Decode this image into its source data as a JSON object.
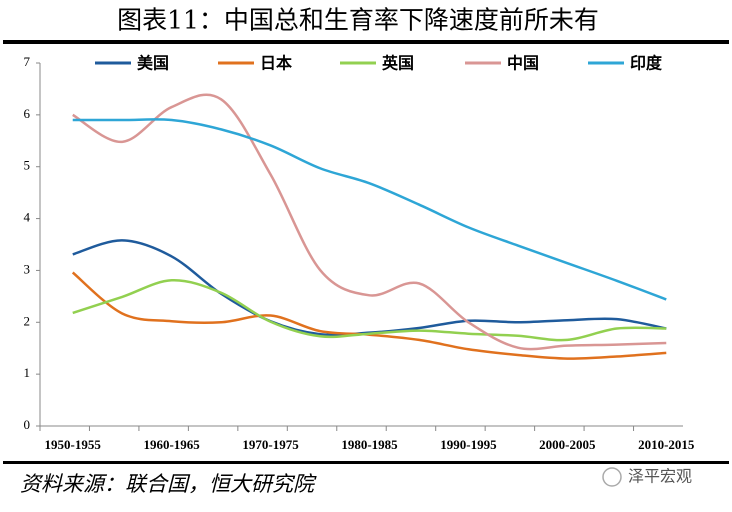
{
  "title": "图表11：中国总和生育率下降速度前所未有",
  "source": "资料来源：联合国，恒大研究院",
  "watermark": "泽平宏观",
  "chart_data": {
    "type": "line",
    "categories": [
      "1950-1955",
      null,
      "1960-1965",
      null,
      "1970-1975",
      null,
      "1980-1985",
      null,
      "1990-1995",
      null,
      "2000-2005",
      null,
      "2010-2015"
    ],
    "series": [
      {
        "name": "美国",
        "color": "#1f5b9c",
        "values": [
          3.31,
          3.58,
          3.27,
          2.55,
          2.02,
          1.77,
          1.8,
          1.89,
          2.03,
          2.0,
          2.04,
          2.06,
          1.88
        ]
      },
      {
        "name": "日本",
        "color": "#e0711e",
        "values": [
          2.96,
          2.17,
          2.02,
          2.0,
          2.13,
          1.83,
          1.76,
          1.66,
          1.48,
          1.37,
          1.3,
          1.34,
          1.41
        ]
      },
      {
        "name": "英国",
        "color": "#92d050",
        "values": [
          2.18,
          2.49,
          2.81,
          2.57,
          2.01,
          1.73,
          1.78,
          1.84,
          1.78,
          1.74,
          1.66,
          1.88,
          1.88
        ]
      },
      {
        "name": "中国",
        "color": "#d99694",
        "values": [
          6.0,
          5.48,
          6.15,
          6.3,
          4.85,
          3.01,
          2.52,
          2.75,
          2.0,
          1.51,
          1.55,
          1.57,
          1.6
        ]
      },
      {
        "name": "印度",
        "color": "#2ea6d6",
        "values": [
          5.9,
          5.9,
          5.9,
          5.72,
          5.41,
          4.97,
          4.68,
          4.27,
          3.83,
          3.48,
          3.14,
          2.8,
          2.44
        ]
      }
    ],
    "ylim": [
      0,
      7
    ],
    "yticks": [
      0,
      1,
      2,
      3,
      4,
      5,
      6,
      7
    ],
    "grid": false,
    "legend": "top"
  }
}
